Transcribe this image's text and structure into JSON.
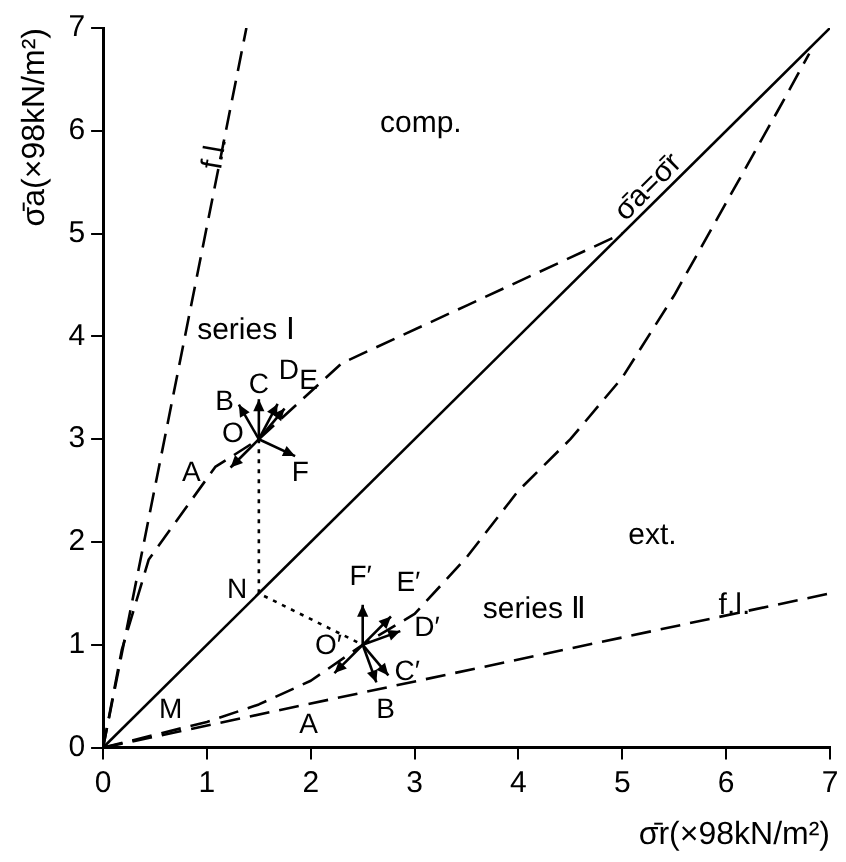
{
  "chart_data": {
    "type": "line",
    "xlabel": "σ̄r(×98kN/m²)",
    "ylabel": "σ̄a(×98kN/m²)",
    "xlim": [
      0,
      7
    ],
    "ylim": [
      0,
      7
    ],
    "xticks": [
      0,
      1,
      2,
      3,
      4,
      5,
      6,
      7
    ],
    "yticks": [
      0,
      1,
      2,
      3,
      4,
      5,
      6,
      7
    ],
    "grid": false,
    "legend": false,
    "marker": "none",
    "series": [
      {
        "color": "#000000",
        "line_style": "dashed",
        "x": [
          0,
          1.38
        ],
        "values": [
          0,
          7
        ]
      },
      {
        "color": "#000000",
        "line_style": "dashed",
        "x": [
          0,
          7
        ],
        "values": [
          0,
          1.5
        ]
      },
      {
        "color": "#000000",
        "line_style": "solid",
        "x": [
          0,
          7
        ],
        "values": [
          0,
          7
        ]
      },
      {
        "color": "#000000",
        "line_style": "dashed",
        "x": [
          0,
          0.18,
          0.44,
          1.08,
          1.5,
          2.3,
          3.5,
          5
        ],
        "values": [
          0,
          0.95,
          1.83,
          2.73,
          3,
          3.74,
          4.3,
          5
        ]
      },
      {
        "color": "#000000",
        "line_style": "dashed",
        "x": [
          0,
          1,
          1.5,
          2,
          2.5,
          3,
          3.5,
          4,
          4.5,
          5,
          5.5,
          6,
          6.5,
          6.8
        ],
        "values": [
          0,
          0.25,
          0.42,
          0.65,
          1,
          1.3,
          1.85,
          2.5,
          3,
          3.6,
          4.4,
          5.3,
          6.2,
          6.75
        ]
      },
      {
        "color": "#000000",
        "line_style": "dotted",
        "x": [
          1.5,
          1.5,
          2.5
        ],
        "values": [
          3,
          1.5,
          1
        ]
      }
    ],
    "annotations": [
      "comp.",
      "ext.",
      "series Ⅰ",
      "series Ⅱ",
      "f.l.",
      "f.l.",
      "σ̄a=σ̄r",
      "O",
      "A",
      "B",
      "C",
      "D",
      "E",
      "F",
      "N",
      "M",
      "F′",
      "E′",
      "D′",
      "C′",
      "B",
      "A",
      "O′"
    ]
  }
}
